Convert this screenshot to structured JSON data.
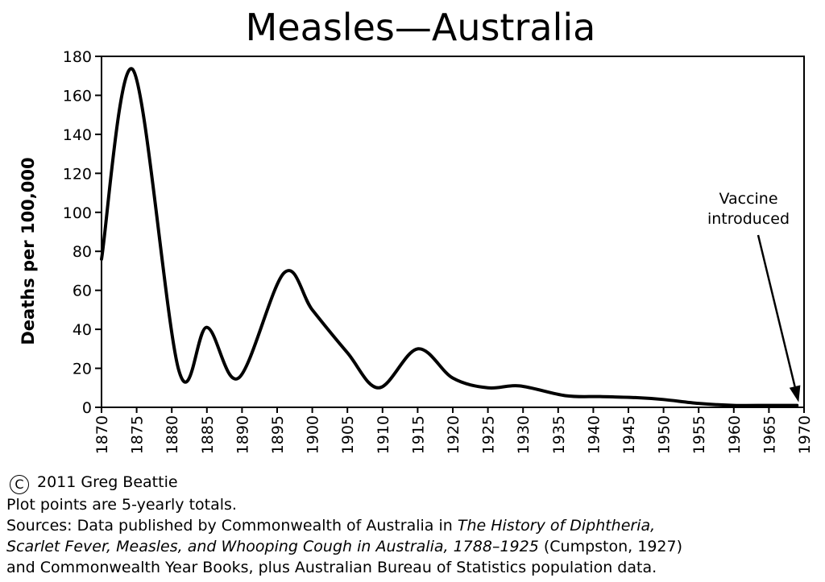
{
  "chart_data": {
    "type": "line",
    "title": "Measles—Australia",
    "xlabel": "",
    "ylabel": "Deaths per 100,000",
    "xlim": [
      1870,
      1970
    ],
    "ylim": [
      0,
      180
    ],
    "x_ticks": [
      "1870",
      "1875",
      "1880",
      "1885",
      "1890",
      "1895",
      "1900",
      "1905",
      "1910",
      "1915",
      "1920",
      "1925",
      "1930",
      "1935",
      "1940",
      "1945",
      "1950",
      "1955",
      "1960",
      "1965",
      "1970"
    ],
    "y_ticks": [
      "0",
      "20",
      "40",
      "60",
      "80",
      "100",
      "120",
      "140",
      "160",
      "180"
    ],
    "grid": false,
    "x": [
      1870,
      1874.5,
      1881,
      1885,
      1889.5,
      1896,
      1900,
      1905,
      1909.5,
      1915,
      1920,
      1925,
      1929.5,
      1936,
      1941,
      1946,
      1950,
      1955,
      1960,
      1965,
      1969
    ],
    "values": [
      76,
      173,
      19,
      41,
      15,
      69,
      50,
      28,
      10,
      30,
      15,
      10,
      11,
      6,
      5.5,
      5,
      4,
      2,
      1,
      1,
      1
    ],
    "annotations": [
      {
        "text_lines": [
          "Vaccine",
          "introduced"
        ],
        "x": 1969,
        "y": 1
      }
    ]
  },
  "footer": {
    "copyright_symbol": "C",
    "copyright": "2011 Greg Beattie",
    "note": "Plot points are 5-yearly totals.",
    "sources_1": "Sources: Data published by Commonwealth of Australia in ",
    "sources_1_title": "The History of Diphtheria,",
    "sources_2_title": "Scarlet Fever, Measles, and Whooping Cough in Australia, 1788–1925",
    "sources_2": " (Cumpston, 1927)",
    "sources_3": "and Commonwealth Year Books, plus Australian Bureau of Statistics population data."
  }
}
